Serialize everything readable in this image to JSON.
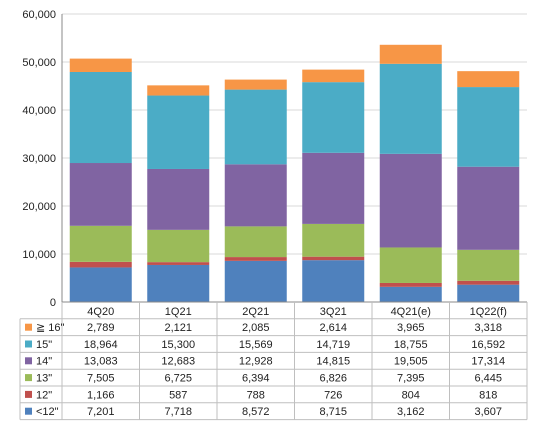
{
  "chart_data": {
    "type": "bar",
    "stacked": true,
    "categories": [
      "4Q20",
      "1Q21",
      "2Q21",
      "3Q21",
      "4Q21(e)",
      "1Q22(f)"
    ],
    "ylim": [
      0,
      60000
    ],
    "yticks": [
      "0",
      "10,000",
      "20,000",
      "30,000",
      "40,000",
      "50,000",
      "60,000"
    ],
    "grid": true,
    "legend": "table-below",
    "series": [
      {
        "name": "<12\"",
        "color": "#4F81BD",
        "values": [
          7201,
          7718,
          8572,
          8715,
          3162,
          3607
        ],
        "labels": [
          "7,201",
          "7,718",
          "8,572",
          "8,715",
          "3,162",
          "3,607"
        ]
      },
      {
        "name": "12\"",
        "color": "#C0504D",
        "values": [
          1166,
          587,
          788,
          726,
          804,
          818
        ],
        "labels": [
          "1,166",
          "587",
          "788",
          "726",
          "804",
          "818"
        ]
      },
      {
        "name": "13\"",
        "color": "#9BBB59",
        "values": [
          7505,
          6725,
          6394,
          6826,
          7395,
          6445
        ],
        "labels": [
          "7,505",
          "6,725",
          "6,394",
          "6,826",
          "7,395",
          "6,445"
        ]
      },
      {
        "name": "14\"",
        "color": "#8064A2",
        "values": [
          13083,
          12683,
          12928,
          14815,
          19505,
          17314
        ],
        "labels": [
          "13,083",
          "12,683",
          "12,928",
          "14,815",
          "19,505",
          "17,314"
        ]
      },
      {
        "name": "15\"",
        "color": "#4BACC6",
        "values": [
          18964,
          15300,
          15569,
          14719,
          18755,
          16592
        ],
        "labels": [
          "18,964",
          "15,300",
          "15,569",
          "14,719",
          "18,755",
          "16,592"
        ]
      },
      {
        "name": "≧ 16\"",
        "color": "#F79646",
        "values": [
          2789,
          2121,
          2085,
          2614,
          3965,
          3318
        ],
        "labels": [
          "2,789",
          "2,121",
          "2,085",
          "2,614",
          "3,965",
          "3,318"
        ]
      }
    ]
  }
}
